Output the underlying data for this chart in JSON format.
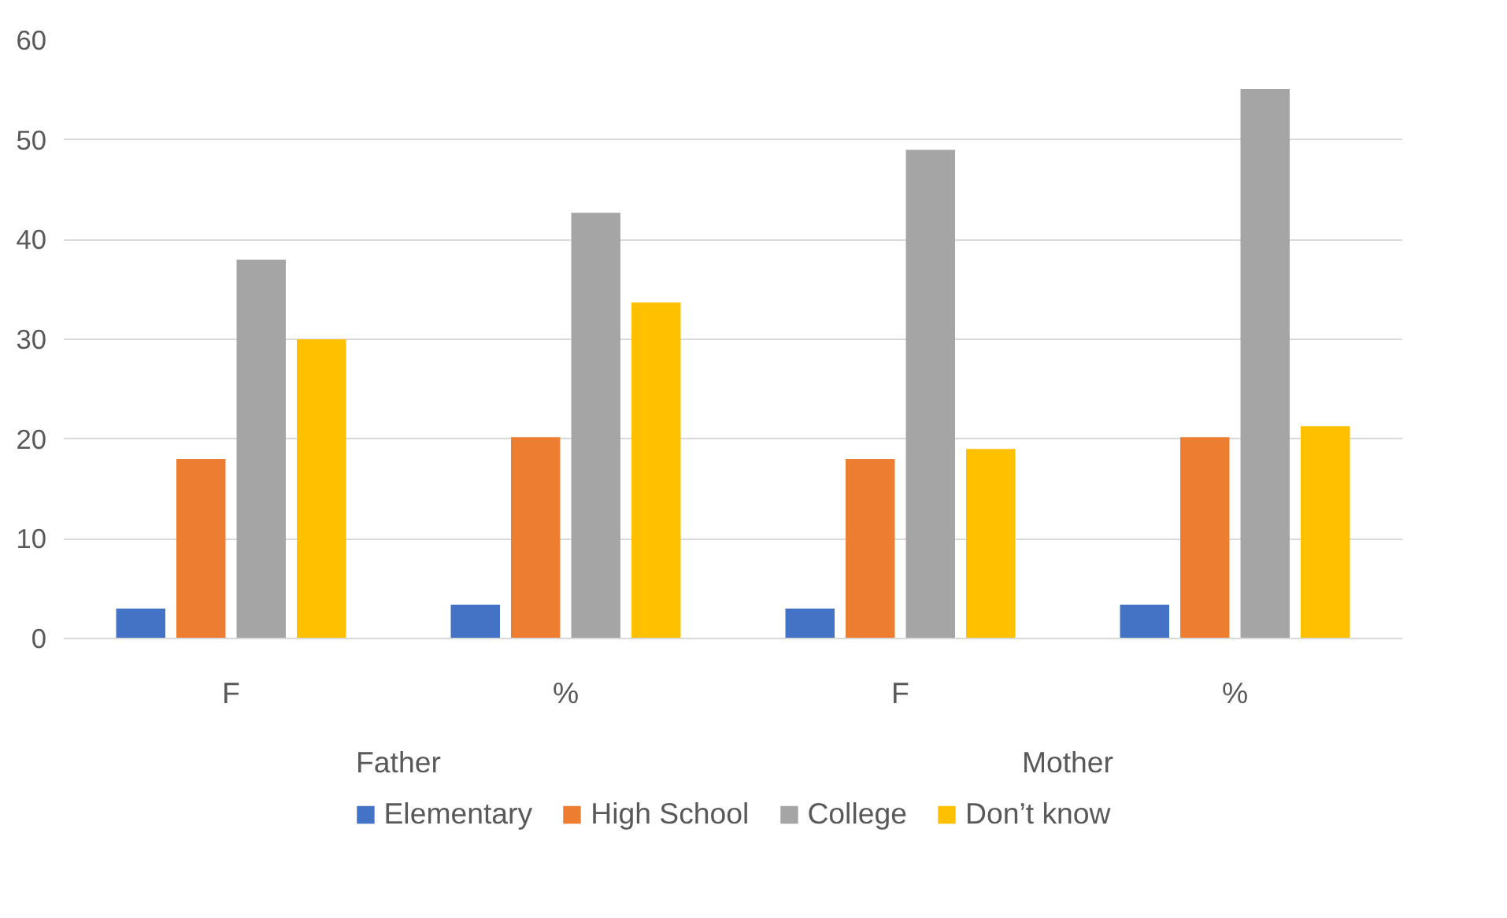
{
  "chart_data": {
    "type": "bar",
    "categories": [
      "F",
      "%",
      "F",
      "%"
    ],
    "series": [
      {
        "name": "Elementary",
        "color": "#4472c4",
        "values": [
          3,
          3.4,
          3,
          3.4
        ]
      },
      {
        "name": "High School",
        "color": "#ed7d31",
        "values": [
          18,
          20.2,
          18,
          20.2
        ]
      },
      {
        "name": "College",
        "color": "#a5a5a5",
        "values": [
          38,
          42.7,
          49,
          55.1
        ]
      },
      {
        "name": "Don’t know",
        "color": "#ffc000",
        "values": [
          30,
          33.7,
          19,
          21.3
        ]
      }
    ],
    "annotations": [
      "Father",
      "Mother"
    ],
    "ylim": [
      0,
      60
    ],
    "yticks": [
      0,
      10,
      20,
      30,
      40,
      50,
      60
    ],
    "grid": "y",
    "legend": "bottom"
  }
}
